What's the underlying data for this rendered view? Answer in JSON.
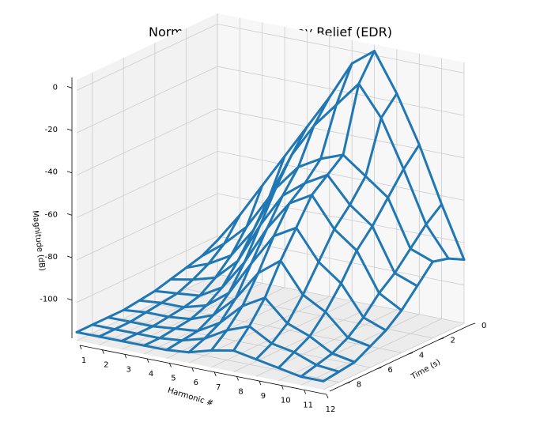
{
  "chart_data": {
    "type": "surface-wireframe",
    "title": "Normalized Energy Decay Relief (EDR)",
    "xlabel": "Harmonic #",
    "ylabel": "Time (s)",
    "zlabel": "Magnitude (dB)",
    "x_ticks": [
      "1",
      "2",
      "3",
      "4",
      "5",
      "6",
      "7",
      "8",
      "9",
      "10",
      "11",
      "12"
    ],
    "y_ticks": [
      "0",
      "2",
      "4",
      "6",
      "8"
    ],
    "z_ticks": [
      "0",
      "-20",
      "-40",
      "-60",
      "-80",
      "-100"
    ],
    "xlim": [
      1,
      12
    ],
    "ylim": [
      0,
      9
    ],
    "zlim": [
      -118,
      5
    ],
    "grid": true,
    "color": "#1f77b4",
    "harmonics": [
      1,
      2,
      3,
      4,
      5,
      6,
      7,
      8,
      9,
      10,
      11,
      12
    ],
    "times": [
      0,
      1,
      2,
      3,
      4,
      5,
      6,
      7,
      8,
      9
    ],
    "z": [
      [
        -102,
        -106,
        -108,
        -110,
        -112,
        -113,
        -114,
        -114,
        -114,
        -114
      ],
      [
        -88,
        -98,
        -104,
        -108,
        -111,
        -112,
        -113,
        -114,
        -114,
        -114
      ],
      [
        -72,
        -88,
        -98,
        -105,
        -110,
        -112,
        -113,
        -114,
        -114,
        -114
      ],
      [
        -56,
        -72,
        -84,
        -95,
        -104,
        -109,
        -112,
        -113,
        -114,
        -114
      ],
      [
        -40,
        -50,
        -62,
        -76,
        -90,
        -101,
        -108,
        -112,
        -113,
        -114
      ],
      [
        -24,
        -34,
        -50,
        -60,
        -72,
        -85,
        -98,
        -106,
        -110,
        -113
      ],
      [
        -6,
        -22,
        -44,
        -52,
        -58,
        -70,
        -84,
        -96,
        -104,
        -110
      ],
      [
        2,
        -10,
        -40,
        -46,
        -52,
        -64,
        -76,
        -90,
        -100,
        -108
      ],
      [
        -16,
        -24,
        -48,
        -58,
        -66,
        -78,
        -90,
        -100,
        -106,
        -110
      ],
      [
        -38,
        -46,
        -56,
        -66,
        -74,
        -86,
        -96,
        -104,
        -108,
        -112
      ],
      [
        -64,
        -70,
        -78,
        -86,
        -92,
        -100,
        -106,
        -110,
        -112,
        -114
      ],
      [
        -88,
        -84,
        -82,
        -90,
        -98,
        -104,
        -108,
        -112,
        -113,
        -114
      ]
    ]
  }
}
